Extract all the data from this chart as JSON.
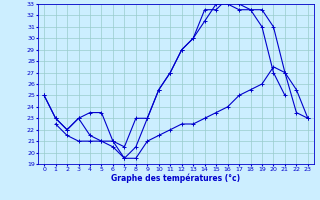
{
  "xlabel": "Graphe des températures (°c)",
  "bg_color": "#cceeff",
  "grid_color": "#99cccc",
  "line_color": "#0000cc",
  "xlim": [
    -0.5,
    23.5
  ],
  "ylim": [
    19,
    33
  ],
  "yticks": [
    19,
    20,
    21,
    22,
    23,
    24,
    25,
    26,
    27,
    28,
    29,
    30,
    31,
    32,
    33
  ],
  "xticks": [
    0,
    1,
    2,
    3,
    4,
    5,
    6,
    7,
    8,
    9,
    10,
    11,
    12,
    13,
    14,
    15,
    16,
    17,
    18,
    19,
    20,
    21,
    22,
    23
  ],
  "line1_x": [
    0,
    1,
    2,
    3,
    4,
    5,
    6,
    7,
    8,
    9,
    10,
    11,
    12,
    13,
    14,
    15,
    16,
    17,
    18,
    19,
    20,
    21
  ],
  "line1_y": [
    25.0,
    23.0,
    22.0,
    23.0,
    23.5,
    23.5,
    21.0,
    19.5,
    20.5,
    23.0,
    25.5,
    27.0,
    29.0,
    30.0,
    31.5,
    33.0,
    33.0,
    32.5,
    32.5,
    31.0,
    27.0,
    25.0
  ],
  "line2_x": [
    0,
    1,
    2,
    3,
    4,
    5,
    6,
    7,
    8,
    9,
    10,
    11,
    12,
    13,
    14,
    15,
    16,
    17,
    18,
    19,
    20,
    21,
    22,
    23
  ],
  "line2_y": [
    25.0,
    23.0,
    22.0,
    23.0,
    21.5,
    21.0,
    21.0,
    20.5,
    23.0,
    23.0,
    25.5,
    27.0,
    29.0,
    30.0,
    32.5,
    32.5,
    33.5,
    33.0,
    32.5,
    32.5,
    31.0,
    27.0,
    25.5,
    23.0
  ],
  "line3_x": [
    1,
    2,
    3,
    4,
    5,
    6,
    7,
    8,
    9,
    10,
    11,
    12,
    13,
    14,
    15,
    16,
    17,
    18,
    19,
    20,
    21,
    22,
    23
  ],
  "line3_y": [
    22.5,
    21.5,
    21.0,
    21.0,
    21.0,
    20.5,
    19.5,
    19.5,
    21.0,
    21.5,
    22.0,
    22.5,
    22.5,
    23.0,
    23.5,
    24.0,
    25.0,
    25.5,
    26.0,
    27.5,
    27.0,
    23.5,
    23.0
  ]
}
